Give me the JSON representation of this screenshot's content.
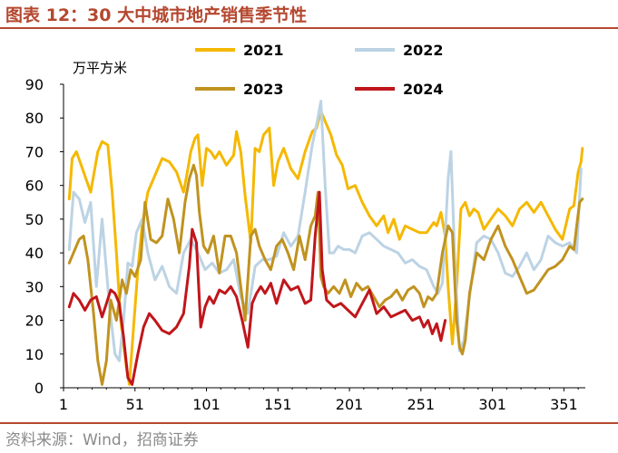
{
  "figure": {
    "title": "图表 12：30 大中城市地产销售季节性",
    "source": "资料来源：Wind，招商证券"
  },
  "chart_data": {
    "type": "line",
    "ylabel": "万平方米",
    "xlabel": "",
    "ylim": [
      0,
      90
    ],
    "xlim": [
      1,
      366
    ],
    "yticks": [
      "0",
      "10",
      "20",
      "30",
      "40",
      "50",
      "60",
      "70",
      "80",
      "90"
    ],
    "xticks": [
      "1",
      "51",
      "101",
      "151",
      "201",
      "251",
      "301",
      "351"
    ],
    "grid": false,
    "legend_placement": "top",
    "series": [
      {
        "name": "2021",
        "color": "#f5b800",
        "x": [
          5,
          7,
          10,
          15,
          20,
          25,
          28,
          32,
          35,
          38,
          41,
          45,
          47,
          50,
          53,
          56,
          60,
          65,
          70,
          75,
          80,
          85,
          88,
          90,
          93,
          95,
          98,
          101,
          104,
          107,
          110,
          115,
          120,
          122,
          125,
          128,
          132,
          135,
          138,
          141,
          145,
          148,
          151,
          155,
          160,
          165,
          170,
          175,
          178,
          181,
          184,
          188,
          192,
          196,
          200,
          205,
          210,
          215,
          220,
          225,
          228,
          232,
          236,
          240,
          245,
          250,
          255,
          260,
          262,
          265,
          268,
          270,
          273,
          276,
          279,
          282,
          285,
          288,
          291,
          295,
          300,
          305,
          310,
          315,
          320,
          325,
          330,
          335,
          340,
          345,
          350,
          355,
          358,
          361,
          363,
          364
        ],
        "y": [
          56,
          68,
          70,
          64,
          58,
          70,
          73,
          72,
          58,
          40,
          20,
          6,
          1,
          18,
          35,
          48,
          58,
          63,
          68,
          67,
          64,
          58,
          65,
          70,
          74,
          75,
          60,
          71,
          70,
          68,
          70,
          66,
          69,
          76,
          70,
          57,
          43,
          71,
          70,
          75,
          77,
          60,
          67,
          71,
          65,
          62,
          70,
          76,
          77,
          82,
          79,
          75,
          69,
          66,
          59,
          60,
          55,
          51,
          48,
          51,
          46,
          50,
          44,
          48,
          47,
          46,
          46,
          49,
          48,
          52,
          45,
          30,
          13,
          30,
          53,
          55,
          51,
          53,
          52,
          47,
          50,
          53,
          51,
          48,
          53,
          55,
          52,
          55,
          51,
          47,
          44,
          53,
          54,
          64,
          67,
          71
        ]
      },
      {
        "name": "2022",
        "color": "#bcd3e4",
        "x": [
          5,
          8,
          12,
          16,
          20,
          24,
          28,
          33,
          37,
          40,
          43,
          46,
          49,
          52,
          56,
          60,
          65,
          70,
          75,
          80,
          85,
          90,
          95,
          100,
          105,
          110,
          115,
          120,
          125,
          130,
          135,
          140,
          145,
          150,
          155,
          160,
          165,
          170,
          175,
          178,
          181,
          184,
          187,
          190,
          193,
          197,
          201,
          205,
          210,
          215,
          220,
          225,
          230,
          235,
          240,
          245,
          250,
          255,
          260,
          263,
          266,
          268,
          270,
          272,
          275,
          278,
          281,
          285,
          290,
          295,
          300,
          305,
          310,
          315,
          320,
          325,
          330,
          335,
          340,
          345,
          350,
          355,
          360,
          363
        ],
        "y": [
          41,
          58,
          56,
          49,
          55,
          30,
          50,
          25,
          10,
          8,
          20,
          37,
          36,
          46,
          50,
          40,
          32,
          36,
          30,
          28,
          40,
          44,
          40,
          35,
          37,
          34,
          35,
          38,
          27,
          22,
          36,
          38,
          38,
          39,
          46,
          42,
          45,
          58,
          72,
          78,
          85,
          60,
          40,
          40,
          42,
          41,
          41,
          40,
          45,
          46,
          44,
          42,
          41,
          40,
          37,
          38,
          36,
          35,
          30,
          28,
          31,
          45,
          62,
          70,
          35,
          11,
          14,
          27,
          43,
          45,
          44,
          40,
          34,
          33,
          36,
          40,
          35,
          38,
          45,
          43,
          42,
          43,
          40,
          65
        ]
      },
      {
        "name": "2023",
        "color": "#c09320",
        "x": [
          5,
          8,
          12,
          15,
          18,
          22,
          25,
          28,
          31,
          34,
          38,
          42,
          45,
          48,
          51,
          55,
          58,
          62,
          66,
          70,
          74,
          78,
          82,
          86,
          89,
          92,
          94,
          96,
          99,
          102,
          106,
          110,
          114,
          118,
          122,
          125,
          128,
          132,
          135,
          138,
          142,
          146,
          150,
          154,
          158,
          162,
          166,
          170,
          174,
          177,
          179,
          181,
          183,
          186,
          190,
          194,
          198,
          202,
          206,
          210,
          214,
          218,
          222,
          226,
          230,
          234,
          238,
          242,
          246,
          250,
          253,
          256,
          259,
          262,
          266,
          270,
          273,
          276,
          278,
          280,
          282,
          285,
          290,
          295,
          300,
          305,
          310,
          315,
          320,
          325,
          330,
          335,
          340,
          345,
          350,
          355,
          358,
          360,
          362,
          364
        ],
        "y": [
          37,
          40,
          44,
          45,
          38,
          22,
          8,
          1,
          8,
          26,
          20,
          32,
          28,
          35,
          33,
          38,
          55,
          44,
          43,
          45,
          56,
          50,
          40,
          55,
          62,
          66,
          63,
          52,
          42,
          40,
          45,
          34,
          45,
          45,
          40,
          30,
          20,
          45,
          47,
          42,
          38,
          35,
          42,
          44,
          40,
          35,
          45,
          38,
          48,
          51,
          58,
          33,
          30,
          28,
          30,
          28,
          32,
          27,
          31,
          29,
          30,
          27,
          24,
          26,
          27,
          29,
          26,
          29,
          30,
          28,
          24,
          27,
          26,
          28,
          40,
          48,
          46,
          20,
          12,
          10,
          14,
          28,
          40,
          38,
          44,
          48,
          42,
          38,
          33,
          28,
          29,
          32,
          35,
          36,
          38,
          42,
          41,
          48,
          55,
          56
        ]
      },
      {
        "name": "2024",
        "color": "#c0161b",
        "x": [
          5,
          8,
          12,
          16,
          20,
          24,
          28,
          31,
          34,
          37,
          40,
          43,
          46,
          49,
          53,
          57,
          61,
          65,
          70,
          75,
          80,
          85,
          89,
          91,
          94,
          97,
          100,
          103,
          106,
          110,
          114,
          118,
          122,
          126,
          130,
          133,
          136,
          139,
          142,
          146,
          150,
          155,
          160,
          165,
          170,
          174,
          177,
          180,
          182,
          185,
          190,
          195,
          200,
          205,
          210,
          215,
          220,
          225,
          230,
          235,
          240,
          245,
          250,
          253,
          256,
          259,
          262,
          265,
          268
        ],
        "y": [
          24,
          28,
          26,
          23,
          26,
          27,
          21,
          25,
          29,
          28,
          25,
          15,
          3,
          1,
          10,
          18,
          22,
          20,
          17,
          16,
          18,
          22,
          36,
          47,
          43,
          18,
          24,
          27,
          25,
          29,
          28,
          30,
          27,
          20,
          12,
          25,
          28,
          30,
          28,
          31,
          25,
          32,
          29,
          30,
          25,
          26,
          45,
          58,
          35,
          26,
          24,
          25,
          23,
          21,
          25,
          29,
          22,
          24,
          21,
          22,
          23,
          20,
          21,
          18,
          20,
          16,
          19,
          14,
          20
        ]
      }
    ]
  }
}
